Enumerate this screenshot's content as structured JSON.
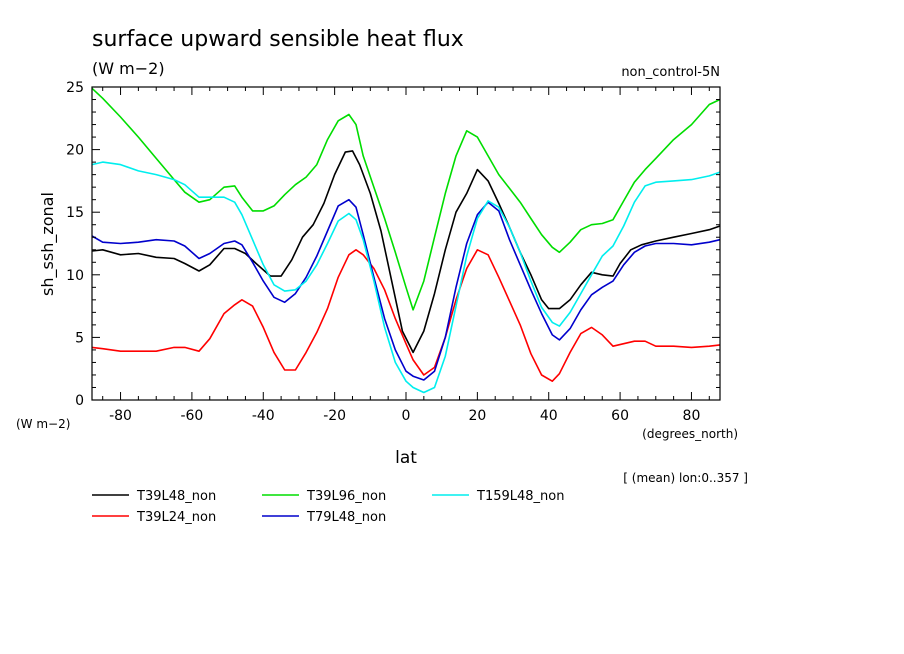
{
  "chart_data": {
    "type": "line",
    "title": "surface upward sensible heat flux",
    "subtitle": "(W m−2)",
    "experiment": "non_control-5N",
    "xlabel": "lat",
    "xunits": "(degrees_north)",
    "ylabel": "sh_ssh_zonal",
    "yunits": "(W m−2)",
    "footnote": "[ (mean) lon:0..357 ]",
    "xlim": [
      -88,
      88
    ],
    "ylim": [
      0,
      25
    ],
    "xticks": [
      -80,
      -60,
      -40,
      -20,
      0,
      20,
      40,
      60,
      80
    ],
    "yticks": [
      0,
      5,
      10,
      15,
      20,
      25
    ],
    "grid": false,
    "legend_position": "bottom",
    "series": [
      {
        "name": "T39L48_non",
        "color": "#000000",
        "x": [
          -88,
          -85,
          -80,
          -75,
          -70,
          -65,
          -62,
          -58,
          -55,
          -51,
          -48,
          -45,
          -42,
          -38,
          -35,
          -32,
          -29,
          -26,
          -23,
          -20,
          -17,
          -15,
          -13,
          -10,
          -7,
          -4,
          -1,
          2,
          5,
          8,
          11,
          14,
          17,
          20,
          23,
          26,
          29,
          32,
          35,
          38,
          40,
          43,
          46,
          49,
          52,
          55,
          58,
          60,
          63,
          66,
          70,
          75,
          80,
          85,
          88
        ],
        "y": [
          11.9,
          12.0,
          11.6,
          11.7,
          11.4,
          11.3,
          10.9,
          10.3,
          10.8,
          12.1,
          12.1,
          11.7,
          10.9,
          9.9,
          9.9,
          11.2,
          13.0,
          14.0,
          15.7,
          18.0,
          19.8,
          19.9,
          18.8,
          16.5,
          13.5,
          9.5,
          5.5,
          3.8,
          5.5,
          8.5,
          12.0,
          15.0,
          16.5,
          18.4,
          17.5,
          15.7,
          13.8,
          11.8,
          10.0,
          8.0,
          7.3,
          7.3,
          8.0,
          9.2,
          10.2,
          10.0,
          9.9,
          10.9,
          12.0,
          12.4,
          12.7,
          13.0,
          13.3,
          13.6,
          13.9
        ]
      },
      {
        "name": "T39L24_non",
        "color": "#ff0000",
        "x": [
          -88,
          -85,
          -80,
          -75,
          -70,
          -65,
          -62,
          -58,
          -55,
          -51,
          -48,
          -46,
          -43,
          -40,
          -37,
          -34,
          -31,
          -28,
          -25,
          -22,
          -19,
          -16,
          -14,
          -12,
          -9,
          -6,
          -3,
          0,
          2,
          5,
          8,
          11,
          14,
          17,
          20,
          23,
          26,
          29,
          32,
          35,
          38,
          41,
          43,
          46,
          49,
          52,
          55,
          58,
          61,
          64,
          67,
          70,
          75,
          80,
          85,
          88
        ],
        "y": [
          4.2,
          4.1,
          3.9,
          3.9,
          3.9,
          4.2,
          4.2,
          3.9,
          4.9,
          6.9,
          7.6,
          8.0,
          7.5,
          5.8,
          3.8,
          2.4,
          2.4,
          3.8,
          5.4,
          7.3,
          9.8,
          11.6,
          12.0,
          11.6,
          10.5,
          8.8,
          6.5,
          4.5,
          3.2,
          2.0,
          2.6,
          5.0,
          8.0,
          10.5,
          12.0,
          11.6,
          9.8,
          7.9,
          6.0,
          3.7,
          2.0,
          1.5,
          2.1,
          3.8,
          5.3,
          5.8,
          5.2,
          4.3,
          4.5,
          4.7,
          4.7,
          4.3,
          4.3,
          4.2,
          4.3,
          4.4
        ]
      },
      {
        "name": "T39L96_non",
        "color": "#00dd00",
        "x": [
          -88,
          -85,
          -80,
          -75,
          -70,
          -65,
          -62,
          -58,
          -55,
          -51,
          -48,
          -46,
          -43,
          -40,
          -37,
          -34,
          -31,
          -28,
          -25,
          -22,
          -19,
          -16,
          -14,
          -12,
          -9,
          -6,
          -3,
          0,
          2,
          5,
          8,
          11,
          14,
          17,
          20,
          23,
          26,
          29,
          32,
          35,
          38,
          41,
          43,
          46,
          49,
          52,
          55,
          58,
          61,
          64,
          67,
          70,
          75,
          80,
          85,
          88
        ],
        "y": [
          24.9,
          24.1,
          22.6,
          21.0,
          19.3,
          17.6,
          16.6,
          15.8,
          16.0,
          17.0,
          17.1,
          16.2,
          15.1,
          15.1,
          15.5,
          16.4,
          17.2,
          17.8,
          18.8,
          20.8,
          22.3,
          22.8,
          22.0,
          19.5,
          17.0,
          14.5,
          11.8,
          9.0,
          7.2,
          9.5,
          13.0,
          16.5,
          19.5,
          21.5,
          21.0,
          19.5,
          18.0,
          16.9,
          15.8,
          14.5,
          13.2,
          12.2,
          11.8,
          12.6,
          13.6,
          14.0,
          14.1,
          14.4,
          15.9,
          17.4,
          18.4,
          19.3,
          20.8,
          22.0,
          23.6,
          24.0
        ]
      },
      {
        "name": "T79L48_non",
        "color": "#0000cc",
        "x": [
          -88,
          -85,
          -80,
          -75,
          -70,
          -65,
          -62,
          -58,
          -55,
          -51,
          -48,
          -46,
          -43,
          -40,
          -37,
          -34,
          -31,
          -28,
          -25,
          -22,
          -19,
          -16,
          -14,
          -12,
          -9,
          -6,
          -3,
          0,
          2,
          5,
          8,
          11,
          14,
          17,
          20,
          23,
          26,
          29,
          32,
          35,
          38,
          41,
          43,
          46,
          49,
          52,
          55,
          58,
          61,
          64,
          67,
          70,
          75,
          80,
          85,
          88
        ],
        "y": [
          13.1,
          12.6,
          12.5,
          12.6,
          12.8,
          12.7,
          12.3,
          11.3,
          11.7,
          12.5,
          12.7,
          12.4,
          11.0,
          9.5,
          8.2,
          7.8,
          8.5,
          9.8,
          11.5,
          13.5,
          15.5,
          16.0,
          15.4,
          13.2,
          9.8,
          6.5,
          4.0,
          2.3,
          1.9,
          1.6,
          2.3,
          5.0,
          9.0,
          12.5,
          14.8,
          15.8,
          15.1,
          12.8,
          10.8,
          8.8,
          6.9,
          5.2,
          4.8,
          5.7,
          7.2,
          8.4,
          9.0,
          9.5,
          10.8,
          11.8,
          12.3,
          12.5,
          12.5,
          12.4,
          12.6,
          12.8
        ]
      },
      {
        "name": "T159L48_non",
        "color": "#00eeee",
        "x": [
          -88,
          -85,
          -80,
          -75,
          -70,
          -65,
          -62,
          -58,
          -55,
          -51,
          -48,
          -46,
          -43,
          -40,
          -37,
          -34,
          -31,
          -28,
          -25,
          -22,
          -19,
          -16,
          -14,
          -12,
          -9,
          -6,
          -3,
          0,
          2,
          5,
          8,
          11,
          14,
          17,
          20,
          23,
          26,
          29,
          32,
          35,
          38,
          41,
          43,
          46,
          49,
          52,
          55,
          58,
          61,
          64,
          67,
          70,
          75,
          80,
          85,
          88
        ],
        "y": [
          18.8,
          19.0,
          18.8,
          18.3,
          18.0,
          17.6,
          17.2,
          16.2,
          16.2,
          16.2,
          15.8,
          14.8,
          12.8,
          10.8,
          9.2,
          8.7,
          8.8,
          9.5,
          10.8,
          12.5,
          14.3,
          14.9,
          14.4,
          12.8,
          9.5,
          5.8,
          3.0,
          1.5,
          1.0,
          0.6,
          1.0,
          3.5,
          7.5,
          11.5,
          14.5,
          15.9,
          15.4,
          13.8,
          11.8,
          9.5,
          7.4,
          6.2,
          5.9,
          7.0,
          8.5,
          10.0,
          11.5,
          12.3,
          13.9,
          15.8,
          17.1,
          17.4,
          17.5,
          17.6,
          17.9,
          18.2
        ]
      }
    ]
  }
}
